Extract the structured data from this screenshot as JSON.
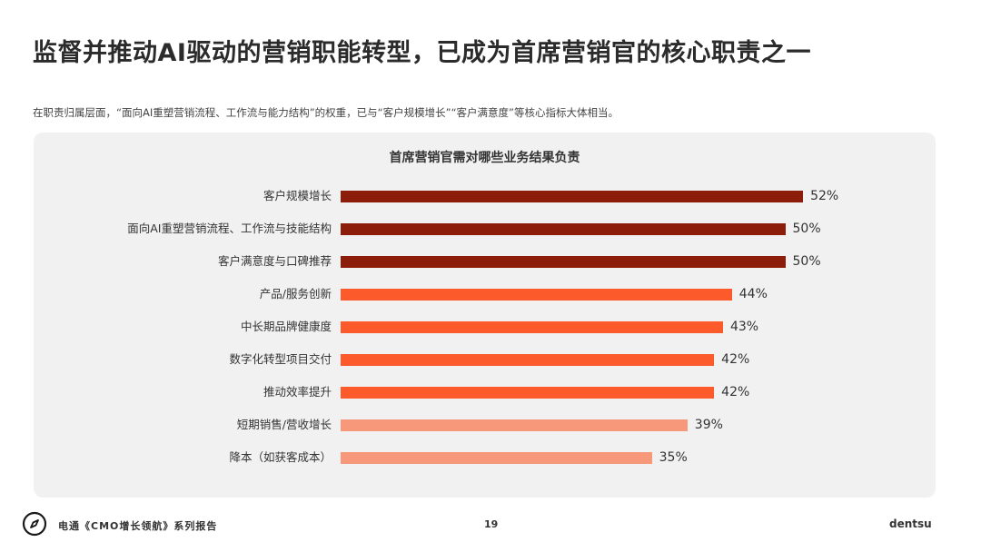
{
  "header": {
    "title": "监督并推动AI驱动的营销职能转型，已成为首席营销官的核心职责之一",
    "subtitle": "在职责归属层面，“面向AI重塑营销流程、工作流与能力结构”的权重，已与“客户规模增长”“客户满意度”等核心指标大体相当。"
  },
  "colors": {
    "dark_red": "#8c1d0a",
    "orange": "#fc5a2a",
    "light_orange": "#f8987a",
    "panel_bg": "#f1f1f1"
  },
  "chart_data": {
    "type": "bar",
    "orientation": "horizontal",
    "title": "首席营销官需对哪些业务结果负责",
    "xlabel": "",
    "ylabel": "",
    "grid": false,
    "legend": null,
    "categories": [
      "客户规模增长",
      "面向AI重塑营销流程、工作流与技能结构",
      "客户满意度与口碑推荐",
      "产品/服务创新",
      "中长期品牌健康度",
      "数字化转型项目交付",
      "推动效率提升",
      "短期销售/营收增长",
      "降本（如获客成本）"
    ],
    "values": [
      52,
      50,
      50,
      44,
      43,
      42,
      42,
      39,
      35
    ],
    "value_labels": [
      "52%",
      "50%",
      "50%",
      "44%",
      "43%",
      "42%",
      "42%",
      "39%",
      "35%"
    ],
    "bar_colors": [
      "#8c1d0a",
      "#8c1d0a",
      "#8c1d0a",
      "#fc5a2a",
      "#fc5a2a",
      "#fc5a2a",
      "#fc5a2a",
      "#f8987a",
      "#f8987a"
    ],
    "unit": "%"
  },
  "footer": {
    "report_name": "电通《CMO增长领航》系列报告",
    "page_number": "19",
    "brand": "dentsu",
    "icon": "compass-icon"
  }
}
